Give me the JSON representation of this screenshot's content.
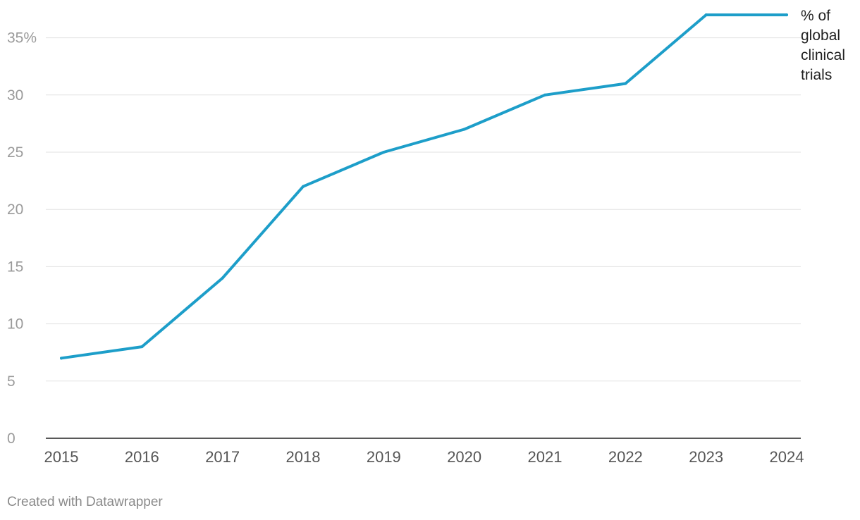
{
  "chart_data": {
    "type": "line",
    "x": [
      "2015",
      "2016",
      "2017",
      "2018",
      "2019",
      "2020",
      "2021",
      "2022",
      "2023",
      "2024"
    ],
    "series": [
      {
        "name": "% of global clinical trials",
        "name_lines": [
          "% of",
          "global",
          "clinical",
          "trials"
        ],
        "values": [
          7,
          8,
          14,
          22,
          25,
          27,
          30,
          31,
          37,
          37
        ],
        "color": "#1d9ec9"
      }
    ],
    "yticks": [
      0,
      5,
      10,
      15,
      20,
      25,
      30,
      35
    ],
    "ytick_labels": [
      "0",
      "5",
      "10",
      "15",
      "20",
      "25",
      "30",
      "35%"
    ],
    "ylim": [
      0,
      37
    ],
    "grid": true,
    "legend": "direct label at line end"
  },
  "footer": {
    "credit": "Created with Datawrapper"
  }
}
